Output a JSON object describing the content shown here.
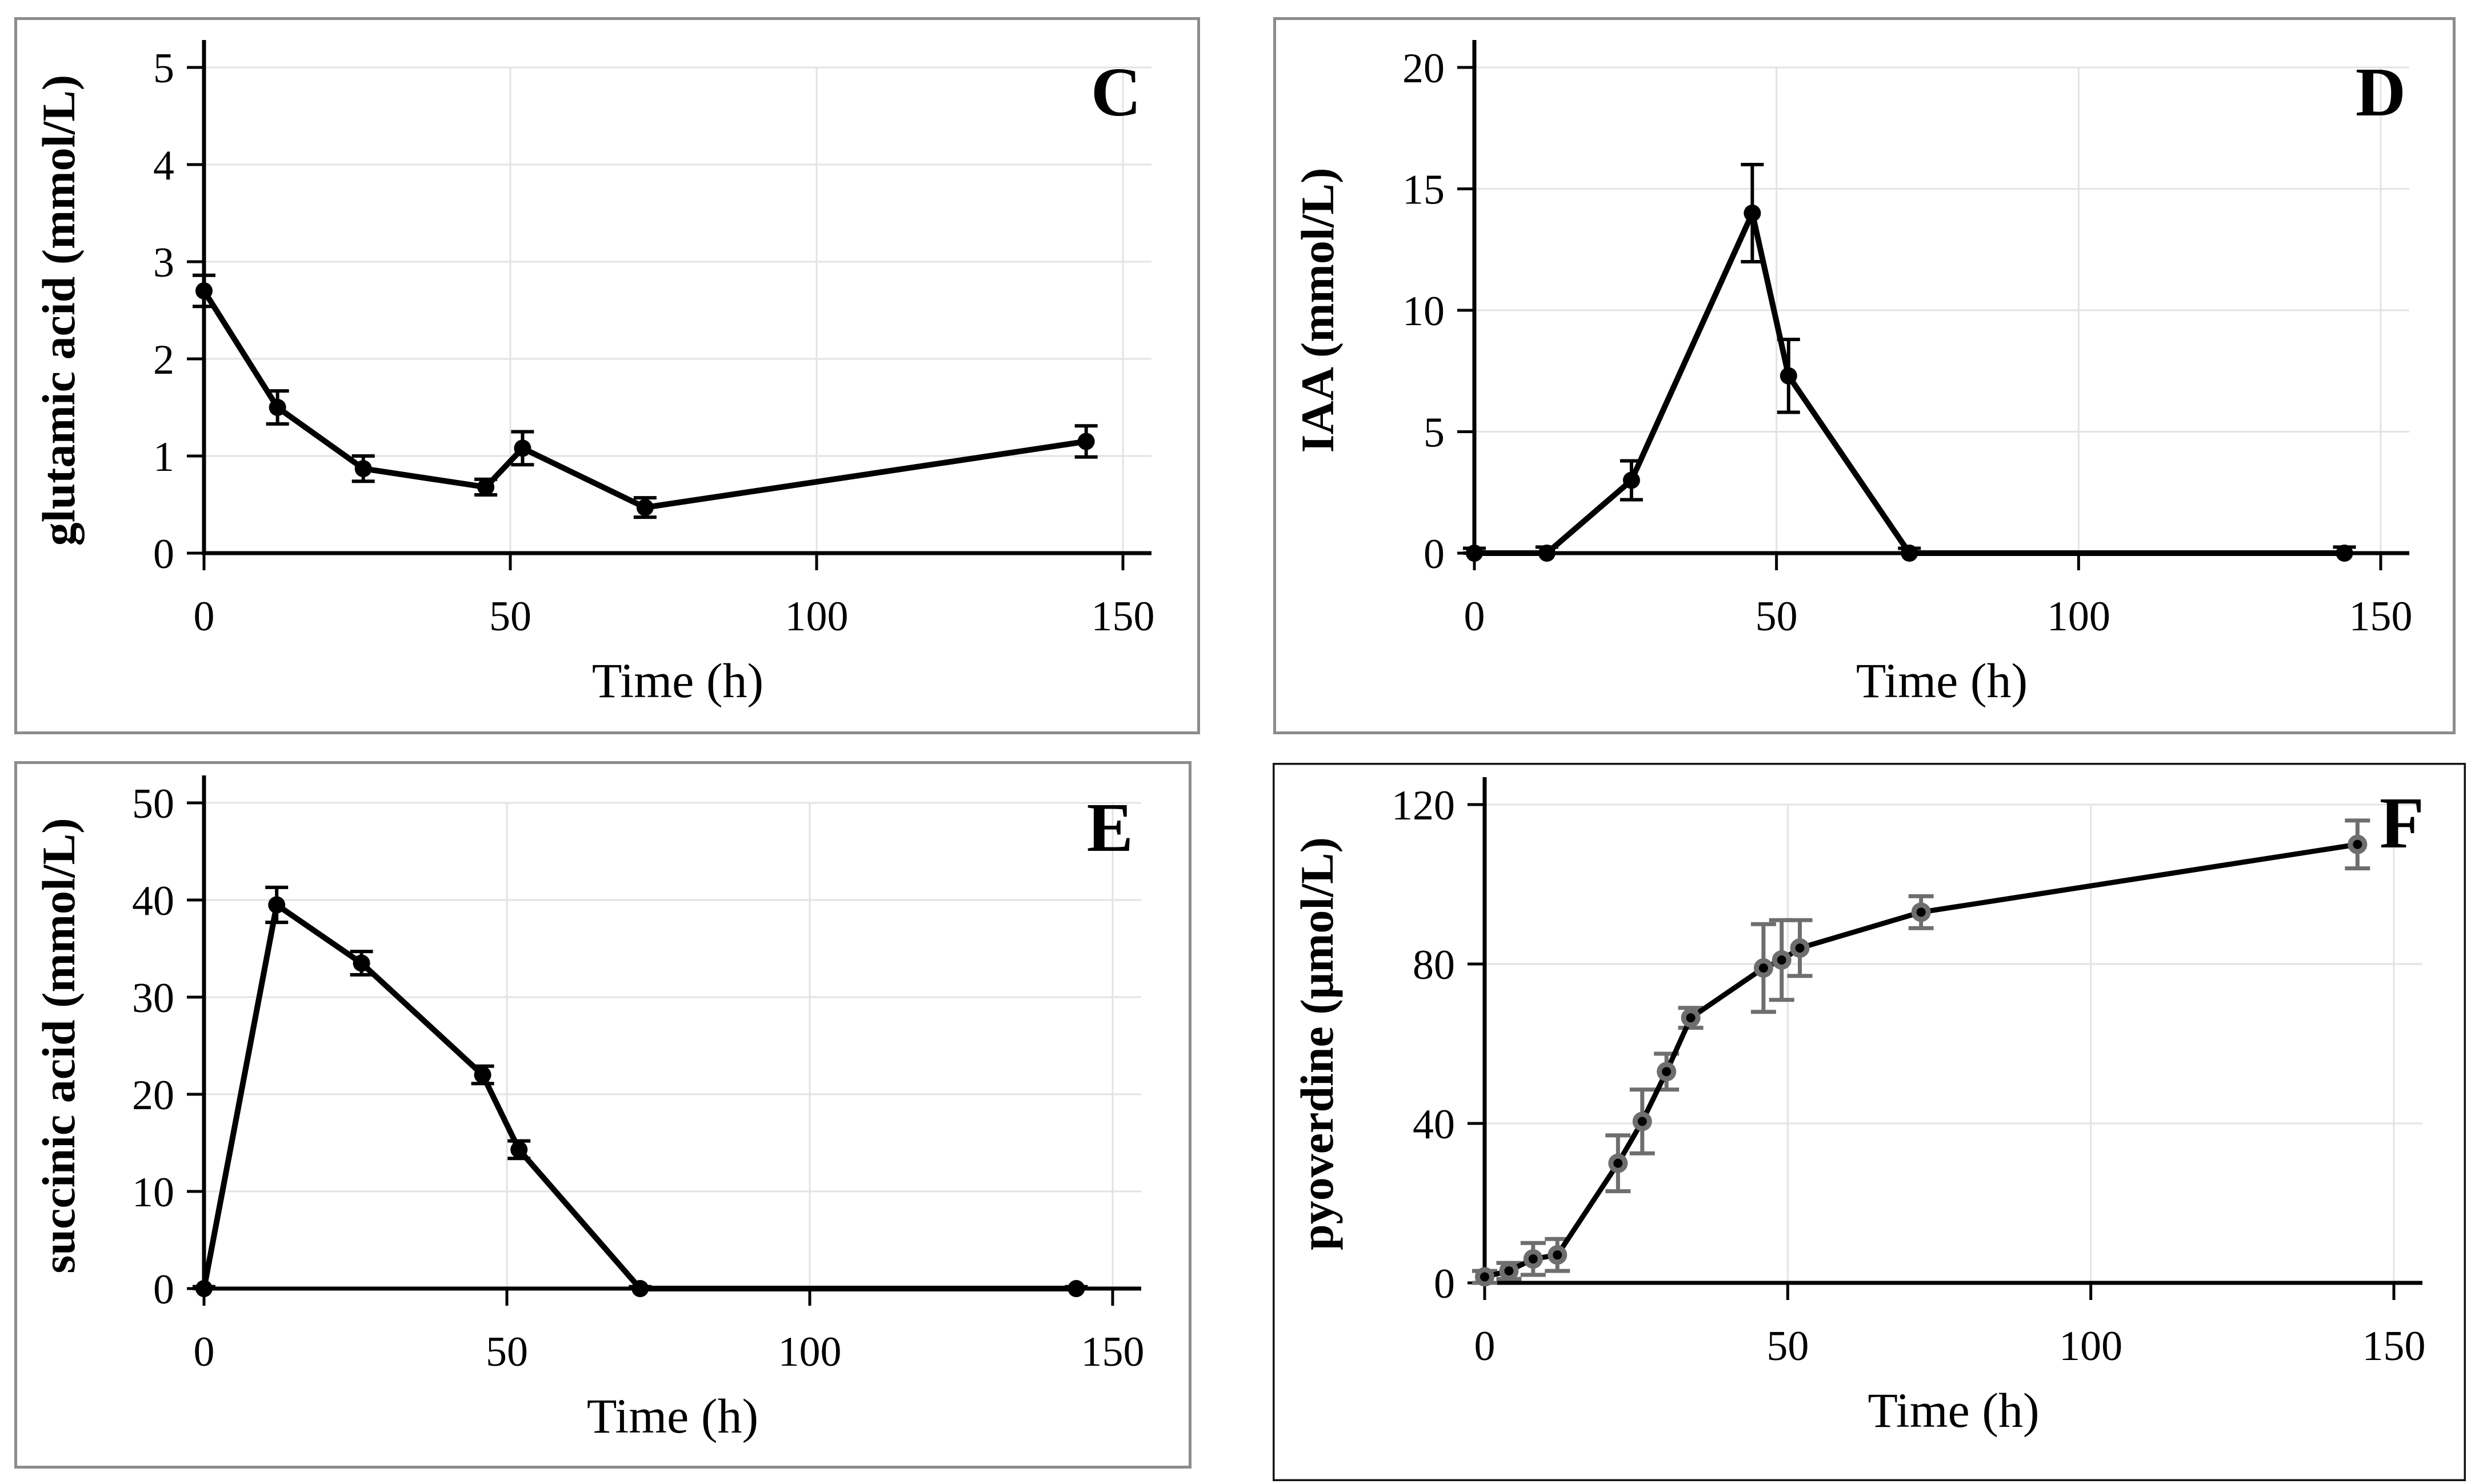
{
  "figure": {
    "background": "#ffffff",
    "grid_color": "#e3e3e3",
    "axis_color": "#000000",
    "text_color": "#000000",
    "panel_border_gray": "#8c8c8c",
    "panel_border_black": "#141414"
  },
  "chart_data": [
    {
      "type": "line",
      "panel_label": "C",
      "title": "",
      "xlabel": "Time (h)",
      "ylabel": "glutamic acid (mmol/L)",
      "x": [
        0,
        12,
        26,
        46,
        52,
        72,
        144
      ],
      "y": [
        2.7,
        1.5,
        0.87,
        0.68,
        1.08,
        0.47,
        1.15
      ],
      "yerr": [
        0.16,
        0.17,
        0.13,
        0.08,
        0.17,
        0.1,
        0.16
      ],
      "xlim": [
        0,
        155
      ],
      "ylim": [
        0,
        5
      ],
      "xticks": [
        0,
        50,
        100,
        150
      ],
      "yticks": [
        0,
        1,
        2,
        3,
        4,
        5
      ],
      "grid": true,
      "legend": false,
      "line_color": "#000000",
      "marker": "filled-circle",
      "marker_color": "#000000",
      "error_color": "#000000",
      "border_color": "#8c8c8c"
    },
    {
      "type": "line",
      "panel_label": "D",
      "title": "",
      "xlabel": "Time (h)",
      "ylabel": "IAA (mmol/L)",
      "x": [
        0,
        12,
        26,
        46,
        52,
        72,
        144
      ],
      "y": [
        0,
        0,
        3.0,
        14.0,
        7.3,
        0,
        0
      ],
      "yerr": [
        0.2,
        0.25,
        0.8,
        2.0,
        1.5,
        0.2,
        0.25
      ],
      "xlim": [
        0,
        155
      ],
      "ylim": [
        0,
        20
      ],
      "xticks": [
        0,
        50,
        100,
        150
      ],
      "yticks": [
        0,
        5,
        10,
        15,
        20
      ],
      "grid": true,
      "legend": false,
      "line_color": "#000000",
      "marker": "filled-circle",
      "marker_color": "#000000",
      "error_color": "#000000",
      "border_color": "#8c8c8c"
    },
    {
      "type": "line",
      "panel_label": "E",
      "title": "",
      "xlabel": "Time (h)",
      "ylabel": "succinic acid (mmol/L)",
      "x": [
        0,
        12,
        26,
        46,
        52,
        72,
        144
      ],
      "y": [
        0,
        39.5,
        33.5,
        22.0,
        14.3,
        0,
        0
      ],
      "yerr": [
        0.2,
        1.8,
        1.2,
        0.9,
        0.9,
        0.2,
        0.2
      ],
      "xlim": [
        0,
        155
      ],
      "ylim": [
        0,
        50
      ],
      "xticks": [
        0,
        50,
        100,
        150
      ],
      "yticks": [
        0,
        10,
        20,
        30,
        40,
        50
      ],
      "grid": true,
      "legend": false,
      "line_color": "#000000",
      "marker": "filled-circle",
      "marker_color": "#000000",
      "error_color": "#000000",
      "border_color": "#8c8c8c"
    },
    {
      "type": "line",
      "panel_label": "F",
      "title": "",
      "xlabel": "Time (h)",
      "ylabel": "pyoverdine (μmol/L)",
      "x": [
        0,
        4,
        8,
        12,
        22,
        26,
        30,
        34,
        46,
        49,
        52,
        72,
        144
      ],
      "y": [
        1.5,
        3,
        6,
        7,
        30,
        40.5,
        53,
        66.5,
        79,
        81,
        84,
        93,
        110
      ],
      "yerr": [
        1.5,
        2,
        4,
        4,
        7,
        8,
        4.5,
        2.5,
        11,
        10,
        7,
        4,
        6
      ],
      "xlim": [
        0,
        155
      ],
      "ylim": [
        0,
        120
      ],
      "xticks": [
        0,
        50,
        100,
        150
      ],
      "yticks": [
        0,
        40,
        80,
        120
      ],
      "grid": true,
      "legend": false,
      "line_color": "#000000",
      "marker": "ring-circle",
      "marker_color": "#000000",
      "marker_ring_color": "#6e6e6e",
      "error_color": "#6e6e6e",
      "border_color": "#141414"
    }
  ]
}
